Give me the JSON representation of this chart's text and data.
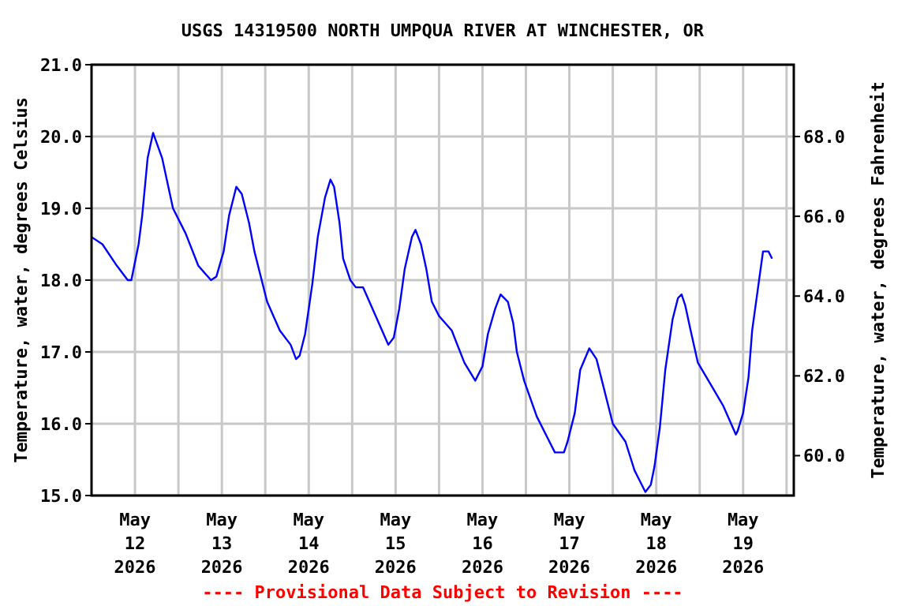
{
  "chart_data": {
    "type": "line",
    "title": "USGS 14319500 NORTH UMPQUA RIVER AT WINCHESTER, OR",
    "ylabel": "Temperature, water, degrees Celsius",
    "y2label": "Temperature, water, degrees Fahrenheit",
    "annotations": [
      "---- Provisional Data Subject to Revision ----"
    ],
    "grid": true,
    "marker": "none",
    "line_style": "solid",
    "xlim": [
      "2026-05-12T00:00",
      "2026-05-20T02:00"
    ],
    "xticks": [
      {
        "value": "2026-05-12T12:00",
        "label": "May 12 2026"
      },
      {
        "value": "2026-05-13T12:00",
        "label": "May 13 2026"
      },
      {
        "value": "2026-05-14T12:00",
        "label": "May 14 2026"
      },
      {
        "value": "2026-05-15T12:00",
        "label": "May 15 2026"
      },
      {
        "value": "2026-05-16T12:00",
        "label": "May 16 2026"
      },
      {
        "value": "2026-05-17T12:00",
        "label": "May 17 2026"
      },
      {
        "value": "2026-05-18T12:00",
        "label": "May 18 2026"
      },
      {
        "value": "2026-05-19T12:00",
        "label": "May 19 2026"
      },
      {
        "value": "2026-05-13T00:00",
        "label": null
      },
      {
        "value": "2026-05-14T00:00",
        "label": null
      },
      {
        "value": "2026-05-15T00:00",
        "label": null
      },
      {
        "value": "2026-05-16T00:00",
        "label": null
      },
      {
        "value": "2026-05-17T00:00",
        "label": null
      },
      {
        "value": "2026-05-18T00:00",
        "label": null
      },
      {
        "value": "2026-05-19T00:00",
        "label": null
      },
      {
        "value": "2026-05-20T00:00",
        "label": null
      }
    ],
    "ylim": [
      15,
      21
    ],
    "yticks": [
      {
        "value": 15,
        "label": "15.0"
      },
      {
        "value": 16,
        "label": "16.0"
      },
      {
        "value": 17,
        "label": "17.0"
      },
      {
        "value": 18,
        "label": "18.0"
      },
      {
        "value": 19,
        "label": "19.0"
      },
      {
        "value": 20,
        "label": "20.0"
      },
      {
        "value": 21,
        "label": "21.0"
      }
    ],
    "y2lim": [
      59,
      69.8
    ],
    "y2ticks": [
      {
        "value": 60,
        "label": "60.0"
      },
      {
        "value": 62,
        "label": "62.0"
      },
      {
        "value": 64,
        "label": "64.0"
      },
      {
        "value": 66,
        "label": "66.0"
      },
      {
        "value": 68,
        "label": "68.0"
      }
    ],
    "series": [
      {
        "color": "#0000ff",
        "x": [
          "2026-05-12T00:00",
          "2026-05-12T03:00",
          "2026-05-12T07:00",
          "2026-05-12T10:00",
          "2026-05-12T11:00",
          "2026-05-12T13:00",
          "2026-05-12T14:00",
          "2026-05-12T15:30",
          "2026-05-12T17:00",
          "2026-05-12T19:30",
          "2026-05-12T22:30",
          "2026-05-13T02:00",
          "2026-05-13T05:30",
          "2026-05-13T09:00",
          "2026-05-13T10:30",
          "2026-05-13T12:30",
          "2026-05-13T14:00",
          "2026-05-13T16:00",
          "2026-05-13T17:30",
          "2026-05-13T19:30",
          "2026-05-13T21:00",
          "2026-05-13T23:00",
          "2026-05-14T00:30",
          "2026-05-14T04:00",
          "2026-05-14T07:00",
          "2026-05-14T08:30",
          "2026-05-14T09:30",
          "2026-05-14T11:00",
          "2026-05-14T13:00",
          "2026-05-14T14:30",
          "2026-05-14T16:30",
          "2026-05-14T18:00",
          "2026-05-14T19:00",
          "2026-05-14T20:30",
          "2026-05-14T21:30",
          "2026-05-14T23:30",
          "2026-05-15T01:00",
          "2026-05-15T03:00",
          "2026-05-15T06:30",
          "2026-05-15T10:00",
          "2026-05-15T11:30",
          "2026-05-15T13:00",
          "2026-05-15T14:30",
          "2026-05-15T16:30",
          "2026-05-15T17:30",
          "2026-05-15T19:00",
          "2026-05-15T20:30",
          "2026-05-15T22:00",
          "2026-05-16T00:00",
          "2026-05-16T03:30",
          "2026-05-16T07:00",
          "2026-05-16T10:00",
          "2026-05-16T12:00",
          "2026-05-16T13:30",
          "2026-05-16T15:30",
          "2026-05-16T17:00",
          "2026-05-16T19:00",
          "2026-05-16T20:30",
          "2026-05-16T21:30",
          "2026-05-16T23:30",
          "2026-05-17T03:00",
          "2026-05-17T06:30",
          "2026-05-17T08:00",
          "2026-05-17T10:30",
          "2026-05-17T11:30",
          "2026-05-17T13:30",
          "2026-05-17T15:00",
          "2026-05-17T17:30",
          "2026-05-17T19:30",
          "2026-05-17T21:00",
          "2026-05-18T00:00",
          "2026-05-18T03:30",
          "2026-05-18T06:00",
          "2026-05-18T07:30",
          "2026-05-18T09:00",
          "2026-05-18T10:30",
          "2026-05-18T11:30",
          "2026-05-18T13:00",
          "2026-05-18T14:30",
          "2026-05-18T16:30",
          "2026-05-18T18:00",
          "2026-05-18T19:00",
          "2026-05-18T20:00",
          "2026-05-18T21:30",
          "2026-05-18T23:30",
          "2026-05-19T03:00",
          "2026-05-19T06:30",
          "2026-05-19T10:00",
          "2026-05-19T10:30",
          "2026-05-19T12:00",
          "2026-05-19T13:30",
          "2026-05-19T14:30",
          "2026-05-19T16:00",
          "2026-05-19T17:30",
          "2026-05-19T19:00",
          "2026-05-19T20:00"
        ],
        "values": [
          18.6,
          18.5,
          18.2,
          18.0,
          18.0,
          18.5,
          18.9,
          19.7,
          20.05,
          19.7,
          19.0,
          18.65,
          18.2,
          18.0,
          18.05,
          18.4,
          18.9,
          19.3,
          19.2,
          18.8,
          18.4,
          18.0,
          17.7,
          17.3,
          17.1,
          16.9,
          16.95,
          17.25,
          17.95,
          18.6,
          19.15,
          19.4,
          19.3,
          18.8,
          18.3,
          18.0,
          17.9,
          17.9,
          17.5,
          17.1,
          17.2,
          17.6,
          18.15,
          18.6,
          18.7,
          18.5,
          18.15,
          17.7,
          17.5,
          17.3,
          16.85,
          16.6,
          16.8,
          17.25,
          17.6,
          17.8,
          17.7,
          17.4,
          17.0,
          16.6,
          16.1,
          15.75,
          15.6,
          15.6,
          15.75,
          16.15,
          16.75,
          17.05,
          16.9,
          16.6,
          16.0,
          15.75,
          15.35,
          15.2,
          15.05,
          15.15,
          15.4,
          15.95,
          16.75,
          17.45,
          17.75,
          17.8,
          17.65,
          17.3,
          16.85,
          16.55,
          16.25,
          15.85,
          15.9,
          16.15,
          16.65,
          17.3,
          17.85,
          18.4,
          18.4,
          18.3
        ]
      }
    ]
  }
}
